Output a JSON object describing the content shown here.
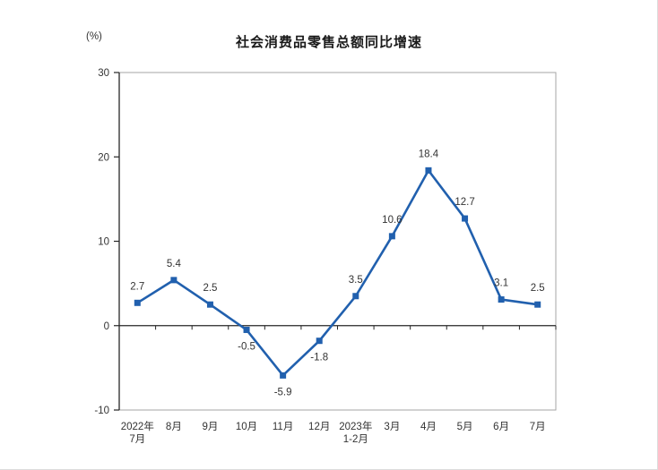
{
  "chart_data": {
    "type": "line",
    "title": "社会消费品零售总额同比增速",
    "unit": "(%)",
    "categories": [
      "2022年\n7月",
      "8月",
      "9月",
      "10月",
      "11月",
      "12月",
      "2023年\n1-2月",
      "3月",
      "4月",
      "5月",
      "6月",
      "7月"
    ],
    "series": [
      {
        "name": "社会消费品零售总额同比增速",
        "values": [
          2.7,
          5.4,
          2.5,
          -0.5,
          -5.9,
          -1.8,
          3.5,
          10.6,
          18.4,
          12.7,
          3.1,
          2.5
        ]
      }
    ],
    "data_labels": [
      "2.7",
      "5.4",
      "2.5",
      "-0.5",
      "-5.9",
      "-1.8",
      "3.5",
      "10.6",
      "18.4",
      "12.7",
      "3.1",
      "2.5"
    ],
    "ylim": [
      -10,
      30
    ],
    "yticks": [
      30,
      20,
      10,
      0,
      -10
    ],
    "grid": false,
    "legend": "none",
    "marker": "square",
    "colors": {
      "line": "#2160ae",
      "marker": "#2160ae",
      "axis": "#262626",
      "plot_border": "#a6a6a6",
      "text": "#333333",
      "title": "#1a1a1a"
    }
  }
}
